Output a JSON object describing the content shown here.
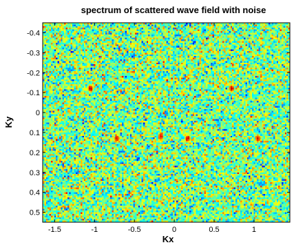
{
  "chart_data": {
    "type": "heatmap",
    "title": "spectrum of scattered wave field with noise",
    "xlabel": "Kx",
    "ylabel": "Ky",
    "xlim": [
      -1.65,
      1.45
    ],
    "ylim": [
      -0.45,
      0.55
    ],
    "y_axis_direction": "reversed (top = -0.45, bottom = 0.55)",
    "x_ticks": [
      "-1.5",
      "-1",
      "-0.5",
      "0",
      "0.5",
      "1"
    ],
    "y_ticks": [
      "-0.4",
      "-0.3",
      "-0.2",
      "-0.1",
      "0",
      "0.1",
      "0.2",
      "0.3",
      "0.4",
      "0.5"
    ],
    "colormap": "jet",
    "background": "random noise (values fill the full colormap range)",
    "grid": false,
    "legend": "none",
    "peaks": [
      {
        "kx": -1.05,
        "ky": -0.12
      },
      {
        "kx": 0.72,
        "ky": -0.12
      },
      {
        "kx": -0.72,
        "ky": 0.13
      },
      {
        "kx": -0.17,
        "ky": 0.12
      },
      {
        "kx": 0.17,
        "ky": 0.13
      },
      {
        "kx": 1.05,
        "ky": 0.13
      }
    ]
  }
}
